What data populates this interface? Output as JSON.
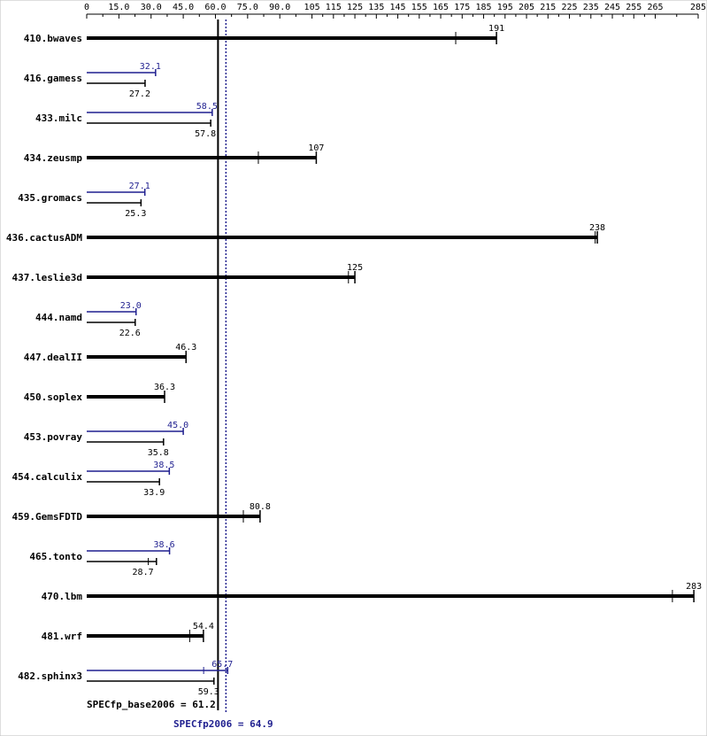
{
  "chart_data": {
    "type": "bar",
    "x_ticks": [
      "0",
      "15.0",
      "30.0",
      "45.0",
      "60.0",
      "75.0",
      "90.0",
      "105",
      "115",
      "125",
      "135",
      "145",
      "155",
      "165",
      "175",
      "185",
      "195",
      "205",
      "215",
      "225",
      "235",
      "245",
      "255",
      "265",
      "285"
    ],
    "x_tick_values": [
      0,
      15,
      30,
      45,
      60,
      75,
      90,
      105,
      115,
      125,
      135,
      145,
      155,
      165,
      175,
      185,
      195,
      205,
      215,
      225,
      235,
      245,
      255,
      265,
      285
    ],
    "xlim": [
      0,
      285
    ],
    "colors": {
      "base": "#000000",
      "peak": "#1f1f8f",
      "axis": "#000000"
    },
    "benchmarks": [
      {
        "name": "410.bwaves",
        "base": 191,
        "base_min": 172,
        "base_max": 191,
        "base_label": "191"
      },
      {
        "name": "416.gamess",
        "base": 27.2,
        "base_label": "27.2",
        "peak": 32.1,
        "peak_label": "32.1"
      },
      {
        "name": "433.milc",
        "base": 57.8,
        "base_label": "57.8",
        "peak": 58.5,
        "peak_label": "58.5"
      },
      {
        "name": "434.zeusmp",
        "base": 107,
        "base_min": 80,
        "base_max": 107,
        "base_label": "107"
      },
      {
        "name": "435.gromacs",
        "base": 25.3,
        "base_label": "25.3",
        "peak": 27.1,
        "peak_label": "27.1"
      },
      {
        "name": "436.cactusADM",
        "base": 238,
        "base_min": 237,
        "base_max": 238,
        "base_label": "238"
      },
      {
        "name": "437.leslie3d",
        "base": 125,
        "base_min": 122,
        "base_max": 125,
        "base_label": "125"
      },
      {
        "name": "444.namd",
        "base": 22.6,
        "base_label": "22.6",
        "peak": 23.0,
        "peak_label": "23.0"
      },
      {
        "name": "447.dealII",
        "base": 46.3,
        "base_label": "46.3"
      },
      {
        "name": "450.soplex",
        "base": 36.3,
        "base_label": "36.3"
      },
      {
        "name": "453.povray",
        "base": 35.8,
        "base_label": "35.8",
        "peak": 45.0,
        "peak_label": "45.0"
      },
      {
        "name": "454.calculix",
        "base": 33.9,
        "base_label": "33.9",
        "peak": 38.5,
        "peak_label": "38.5"
      },
      {
        "name": "459.GemsFDTD",
        "base": 80.8,
        "base_min": 73,
        "base_max": 80.8,
        "base_label": "80.8"
      },
      {
        "name": "465.tonto",
        "base": 28.7,
        "base_min": 28.7,
        "base_max": 32.5,
        "base_label": "28.7",
        "peak": 38.6,
        "peak_label": "38.6"
      },
      {
        "name": "470.lbm",
        "base": 283,
        "base_min": 273,
        "base_max": 283,
        "base_label": "283"
      },
      {
        "name": "481.wrf",
        "base": 54.4,
        "base_min": 48,
        "base_max": 54.4,
        "base_label": "54.4"
      },
      {
        "name": "482.sphinx3",
        "base": 59.3,
        "base_label": "59.3",
        "peak": 65.7,
        "peak_min": 54.5,
        "peak_max": 65.7,
        "peak_label": "65.7"
      }
    ],
    "reference_lines": [
      {
        "label": "SPECfp_base2006 = 61.2",
        "value": 61.2,
        "style": "solid",
        "color": "#000000"
      },
      {
        "label": "SPECfp2006 = 64.9",
        "value": 64.9,
        "style": "dotted",
        "color": "#1f1f8f"
      }
    ],
    "grid": false,
    "legend": "none"
  }
}
